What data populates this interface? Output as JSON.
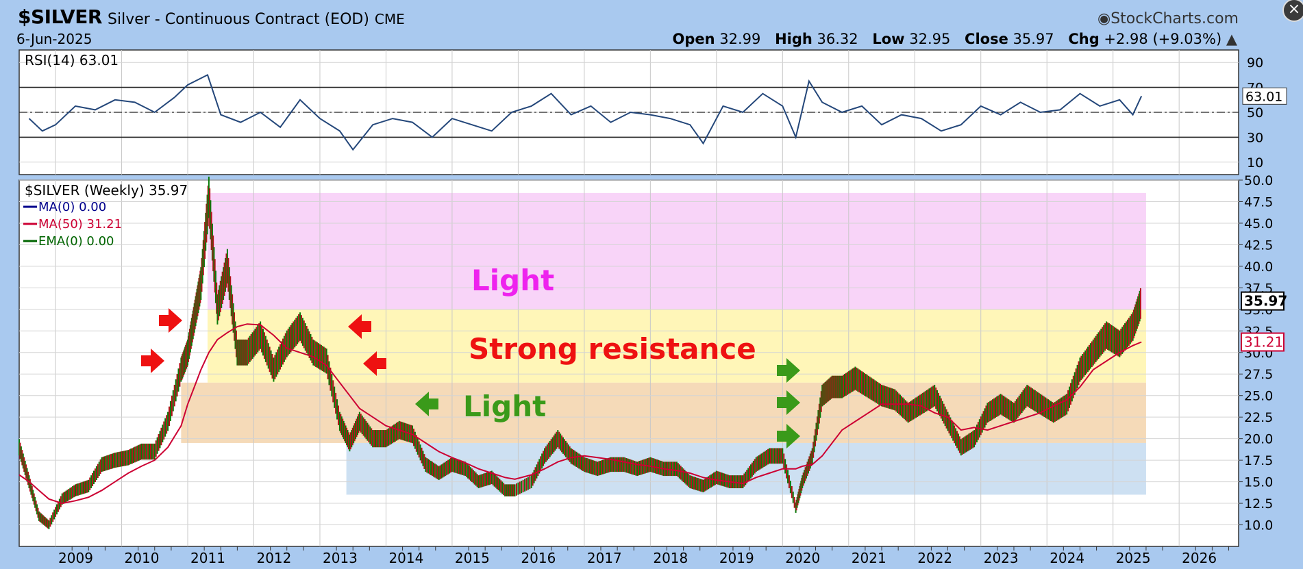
{
  "header": {
    "symbol": "$SILVER",
    "description": "Silver - Continuous Contract (EOD)",
    "exchange": "CME",
    "date": "6-Jun-2025",
    "brand": "StockCharts.com",
    "ohlc": {
      "open_label": "Open",
      "open": "32.99",
      "high_label": "High",
      "high": "36.32",
      "low_label": "Low",
      "low": "32.95",
      "close_label": "Close",
      "close": "35.97",
      "chg_label": "Chg",
      "chg": "+2.98 (+9.03%)"
    },
    "close_icon": "close-icon"
  },
  "chart_data": [
    {
      "type": "line",
      "title": "RSI(14) 63.01",
      "ylim": [
        0,
        100
      ],
      "yticks": [
        10,
        30,
        50,
        70,
        90
      ],
      "reference_lines": [
        30,
        50,
        70
      ],
      "last_value_label": "63.01",
      "x": [
        2008.6,
        2008.8,
        2009.0,
        2009.3,
        2009.6,
        2009.9,
        2010.2,
        2010.5,
        2010.8,
        2011.0,
        2011.3,
        2011.5,
        2011.8,
        2012.1,
        2012.4,
        2012.7,
        2013.0,
        2013.3,
        2013.5,
        2013.8,
        2014.1,
        2014.4,
        2014.7,
        2015.0,
        2015.3,
        2015.6,
        2015.9,
        2016.2,
        2016.5,
        2016.8,
        2017.1,
        2017.4,
        2017.7,
        2018.0,
        2018.3,
        2018.6,
        2018.8,
        2019.1,
        2019.4,
        2019.7,
        2020.0,
        2020.2,
        2020.4,
        2020.6,
        2020.9,
        2021.2,
        2021.5,
        2021.8,
        2022.1,
        2022.4,
        2022.7,
        2023.0,
        2023.3,
        2023.6,
        2023.9,
        2024.2,
        2024.5,
        2024.8,
        2025.1,
        2025.3,
        2025.43
      ],
      "series": [
        {
          "values": [
            45,
            35,
            40,
            55,
            52,
            60,
            58,
            50,
            62,
            72,
            80,
            48,
            42,
            50,
            38,
            60,
            45,
            35,
            20,
            40,
            45,
            42,
            30,
            45,
            40,
            35,
            50,
            55,
            65,
            48,
            55,
            42,
            50,
            48,
            45,
            40,
            25,
            55,
            50,
            65,
            55,
            30,
            75,
            58,
            50,
            55,
            40,
            48,
            45,
            35,
            40,
            55,
            48,
            58,
            50,
            52,
            65,
            55,
            60,
            48,
            63.01
          ]
        }
      ]
    },
    {
      "type": "line",
      "title": "$SILVER (Weekly) 35.97",
      "xlabel": "",
      "ylabel": "",
      "ylim": [
        7.5,
        50
      ],
      "yticks": [
        10.0,
        12.5,
        15.0,
        17.5,
        20.0,
        22.5,
        25.0,
        27.5,
        30.0,
        32.5,
        35.0,
        37.5,
        40.0,
        42.5,
        45.0,
        47.5,
        50.0
      ],
      "xticks": [
        "2009",
        "2010",
        "2011",
        "2012",
        "2013",
        "2014",
        "2015",
        "2016",
        "2017",
        "2018",
        "2019",
        "2020",
        "2021",
        "2022",
        "2023",
        "2024",
        "2025",
        "2026"
      ],
      "xlim": [
        2008.45,
        2026.9
      ],
      "legend": [
        {
          "label": "MA(0) 0.00",
          "color": "#00008b"
        },
        {
          "label": "MA(50) 31.21",
          "color": "#cc0033"
        },
        {
          "label": "EMA(0) 0.00",
          "color": "#006400"
        }
      ],
      "x": [
        2008.45,
        2008.6,
        2008.75,
        2008.9,
        2009.1,
        2009.3,
        2009.5,
        2009.7,
        2009.9,
        2010.1,
        2010.3,
        2010.5,
        2010.7,
        2010.9,
        2011.0,
        2011.1,
        2011.2,
        2011.32,
        2011.45,
        2011.6,
        2011.75,
        2011.9,
        2012.1,
        2012.3,
        2012.5,
        2012.7,
        2012.9,
        2013.1,
        2013.3,
        2013.45,
        2013.6,
        2013.8,
        2014.0,
        2014.2,
        2014.4,
        2014.6,
        2014.8,
        2015.0,
        2015.2,
        2015.4,
        2015.6,
        2015.8,
        2015.95,
        2016.2,
        2016.4,
        2016.6,
        2016.8,
        2017.0,
        2017.2,
        2017.4,
        2017.6,
        2017.8,
        2018.0,
        2018.2,
        2018.4,
        2018.6,
        2018.8,
        2019.0,
        2019.2,
        2019.4,
        2019.6,
        2019.8,
        2020.0,
        2020.2,
        2020.3,
        2020.45,
        2020.6,
        2020.75,
        2020.9,
        2021.1,
        2021.3,
        2021.5,
        2021.7,
        2021.9,
        2022.1,
        2022.3,
        2022.5,
        2022.7,
        2022.9,
        2023.1,
        2023.3,
        2023.5,
        2023.7,
        2023.9,
        2024.1,
        2024.3,
        2024.5,
        2024.7,
        2024.9,
        2025.1,
        2025.3,
        2025.43
      ],
      "series": [
        {
          "name": "$SILVER",
          "values": [
            19,
            15,
            11,
            10,
            13,
            14,
            14.5,
            17,
            17.5,
            17.8,
            18.5,
            18.5,
            22,
            28,
            30,
            34,
            38,
            48,
            35,
            40,
            30,
            30,
            32,
            28,
            31,
            33,
            30,
            29,
            22,
            19.5,
            22,
            20,
            20,
            21,
            20.5,
            17,
            16,
            17,
            16.5,
            15,
            15.5,
            14,
            14,
            15,
            18,
            20,
            18,
            17,
            16.5,
            17,
            17,
            16.5,
            17,
            16.5,
            16.5,
            15,
            14.5,
            15.5,
            15,
            15,
            17,
            18,
            18,
            12,
            15,
            18,
            25,
            26,
            26,
            27,
            26,
            25,
            24.5,
            23,
            24,
            25,
            22,
            19,
            20,
            23,
            24,
            23,
            25,
            24,
            23,
            24,
            28,
            30,
            32,
            31,
            33,
            35.97
          ]
        },
        {
          "name": "MA(50)",
          "values": [
            15.8,
            15,
            14,
            13,
            12.5,
            12.8,
            13.2,
            14,
            15,
            16,
            16.8,
            17.5,
            19,
            21.5,
            24,
            26,
            28,
            30,
            31.5,
            32.3,
            33,
            33.3,
            33.2,
            32,
            30.5,
            30,
            29.5,
            28.5,
            26.5,
            25,
            23.5,
            22.5,
            21.5,
            21,
            20.5,
            19.5,
            18.5,
            17.8,
            17.2,
            16.5,
            16,
            15.5,
            15.3,
            15.8,
            16.5,
            17.3,
            17.8,
            18,
            17.8,
            17.6,
            17.3,
            17,
            16.8,
            16.5,
            16.3,
            16,
            15.5,
            15.2,
            15,
            14.8,
            15.5,
            16,
            16.5,
            16.5,
            16.8,
            17,
            18,
            19.5,
            21,
            22,
            23,
            24,
            24,
            24,
            23.8,
            23,
            22.5,
            21,
            21.3,
            21,
            21.5,
            22,
            22.5,
            23,
            23.8,
            24.5,
            26,
            28,
            29,
            30,
            30.8,
            31.21
          ]
        }
      ],
      "last_value_label": "35.97",
      "ma_value_label": "31.21",
      "zones": [
        {
          "label": "Light",
          "from": 35,
          "to": 48.5,
          "color": "#f5c6f5",
          "label_color": "#ee22ee"
        },
        {
          "label": "Strong resistance",
          "from": 26.5,
          "to": 35,
          "color": "#fff3a0",
          "label_color": "#ee1111"
        },
        {
          "label": "",
          "from": 19.5,
          "to": 26.5,
          "color": "#f2cda0",
          "label_color": ""
        },
        {
          "label": "",
          "from": 13.5,
          "to": 19.5,
          "color": "#bcd6ee",
          "label_color": ""
        }
      ],
      "extra_labels": [
        {
          "label": "Light",
          "value": 23.8,
          "color": "#3a9a1a"
        }
      ]
    }
  ]
}
